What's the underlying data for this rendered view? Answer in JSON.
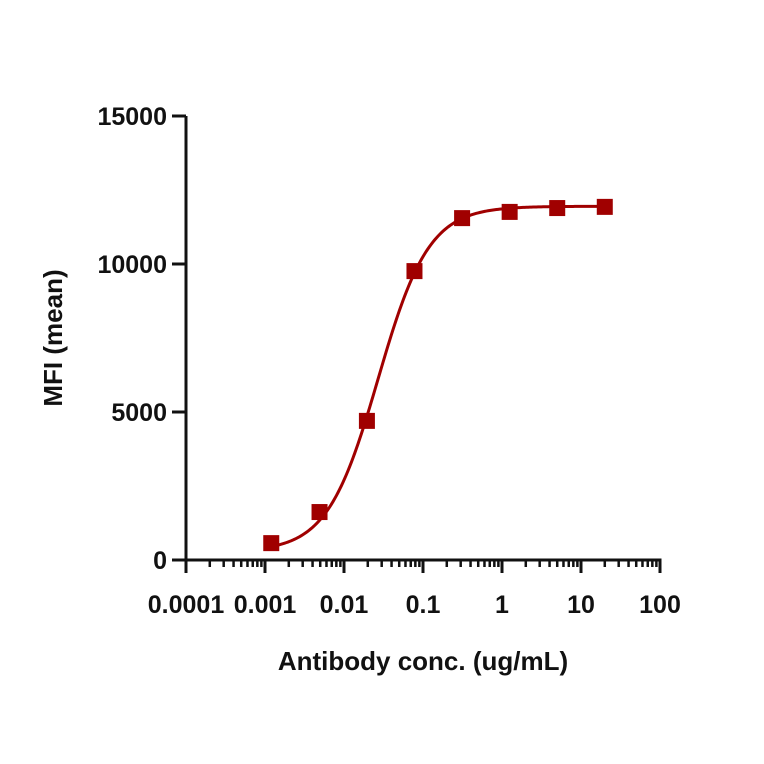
{
  "chart_data": {
    "type": "scatter",
    "subtype": "dose-response with fitted sigmoidal curve",
    "title": "",
    "xlabel": "Antibody conc. (ug/mL)",
    "ylabel": "MFI (mean)",
    "xscale": "log",
    "xlim": [
      0.0001,
      100
    ],
    "ylim": [
      0,
      15000
    ],
    "x_ticks": [
      0.0001,
      0.001,
      0.01,
      0.1,
      1,
      10,
      100
    ],
    "x_tick_labels": [
      "0.0001",
      "0.001",
      "0.01",
      "0.1",
      "1",
      "10",
      "100"
    ],
    "y_ticks": [
      0,
      5000,
      10000,
      15000
    ],
    "y_tick_labels": [
      "0",
      "5000",
      "10000",
      "15000"
    ],
    "grid": false,
    "legend": null,
    "series": [
      {
        "name": "MFI",
        "color": "#a00000",
        "marker": "square",
        "x": [
          0.0012,
          0.0049,
          0.0195,
          0.078,
          0.3125,
          1.25,
          5,
          20
        ],
        "y": [
          570,
          1620,
          4700,
          9760,
          11550,
          11760,
          11890,
          11930
        ]
      }
    ],
    "fit": {
      "model": "4PL",
      "bottom": 280,
      "top": 11950,
      "ec50": 0.027,
      "hill": 1.35
    }
  }
}
